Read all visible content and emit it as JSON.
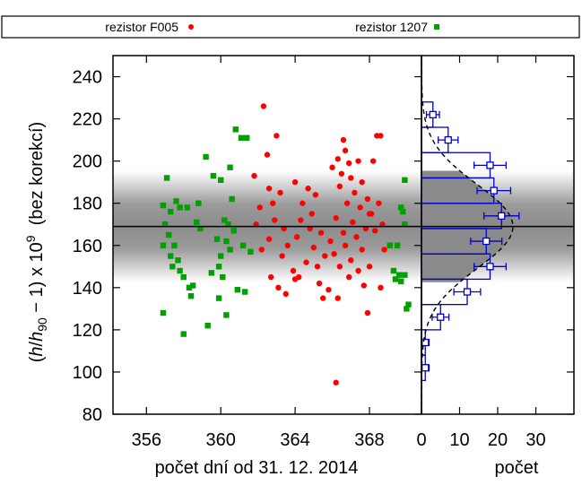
{
  "chart_data": [
    {
      "type": "scatter",
      "xlabel": "počet dní od 31. 12. 2014",
      "ylabel_parts": [
        "(",
        "h",
        "/",
        "h",
        "90",
        " − 1) x 10",
        "9",
        "  (bez korekcí)"
      ],
      "xlim": [
        354.2,
        370.8
      ],
      "ylim": [
        80,
        250
      ],
      "xticks": [
        356,
        360,
        364,
        368
      ],
      "yticks": [
        80,
        100,
        120,
        140,
        160,
        180,
        200,
        220,
        240
      ],
      "mean_line": 169,
      "band": {
        "center": 169,
        "sigma": 12
      },
      "legend_position": "top",
      "series": [
        {
          "name": "rezistor F005",
          "color": "#ff0000",
          "marker": "circle",
          "points": [
            [
              362.3,
              226
            ],
            [
              363.0,
              212
            ],
            [
              362.5,
              203
            ],
            [
              361.8,
              193
            ],
            [
              362.6,
              187
            ],
            [
              363.2,
              185
            ],
            [
              362.8,
              180
            ],
            [
              362.1,
              178
            ],
            [
              362.9,
              172
            ],
            [
              361.9,
              170
            ],
            [
              363.4,
              168
            ],
            [
              362.6,
              163
            ],
            [
              363.6,
              160
            ],
            [
              362.2,
              158
            ],
            [
              363.3,
              155
            ],
            [
              364.0,
              190
            ],
            [
              364.7,
              187
            ],
            [
              365.1,
              184
            ],
            [
              364.4,
              180
            ],
            [
              364.9,
              175
            ],
            [
              364.3,
              172
            ],
            [
              364.8,
              168
            ],
            [
              365.4,
              166
            ],
            [
              364.1,
              164
            ],
            [
              365.0,
              159
            ],
            [
              365.6,
              155
            ],
            [
              364.6,
              152
            ],
            [
              365.2,
              150
            ],
            [
              363.9,
              148
            ],
            [
              364.2,
              145
            ],
            [
              362.7,
              145
            ],
            [
              363.1,
              140
            ],
            [
              363.5,
              137
            ],
            [
              364.0,
              144
            ],
            [
              365.3,
              142
            ],
            [
              366.6,
              210
            ],
            [
              366.7,
              205
            ],
            [
              366.3,
              201
            ],
            [
              366.0,
              197
            ],
            [
              366.9,
              199
            ],
            [
              367.4,
              200
            ],
            [
              366.5,
              194
            ],
            [
              367.0,
              192
            ],
            [
              367.6,
              190
            ],
            [
              366.4,
              188
            ],
            [
              367.2,
              185
            ],
            [
              367.9,
              182
            ],
            [
              366.8,
              180
            ],
            [
              367.5,
              178
            ],
            [
              368.0,
              175
            ],
            [
              366.2,
              173
            ],
            [
              367.1,
              171
            ],
            [
              367.8,
              168
            ],
            [
              366.6,
              166
            ],
            [
              367.3,
              164
            ],
            [
              365.9,
              162
            ],
            [
              366.7,
              160
            ],
            [
              367.6,
              158
            ],
            [
              366.1,
              156
            ],
            [
              367.0,
              153
            ],
            [
              366.4,
              150
            ],
            [
              367.4,
              148
            ],
            [
              366.9,
              145
            ],
            [
              367.7,
              141
            ],
            [
              365.8,
              139
            ],
            [
              366.3,
              135
            ],
            [
              367.9,
              128
            ],
            [
              368.4,
              212
            ],
            [
              368.6,
              212
            ],
            [
              368.2,
              200
            ],
            [
              368.5,
              180
            ],
            [
              368.1,
              175
            ],
            [
              368.7,
              170
            ],
            [
              368.3,
              167
            ],
            [
              368.8,
              158
            ],
            [
              368.0,
              150
            ],
            [
              368.6,
              140
            ],
            [
              365.5,
              135
            ],
            [
              366.2,
              95
            ]
          ]
        },
        {
          "name": "rezistor 1207",
          "color": "#00a000",
          "marker": "square",
          "points": [
            [
              357.1,
              192
            ],
            [
              357.6,
              181
            ],
            [
              357.8,
              178
            ],
            [
              356.9,
              179
            ],
            [
              357.3,
              176
            ],
            [
              358.2,
              178
            ],
            [
              357.0,
              170
            ],
            [
              357.2,
              165
            ],
            [
              356.9,
              160
            ],
            [
              357.5,
              160
            ],
            [
              357.8,
              148
            ],
            [
              357.4,
              150
            ],
            [
              357.7,
              153
            ],
            [
              358.0,
              145
            ],
            [
              357.3,
              155
            ],
            [
              356.9,
              128
            ],
            [
              358.0,
              118
            ],
            [
              358.3,
              140
            ],
            [
              358.5,
              141
            ],
            [
              358.4,
              136
            ],
            [
              359.2,
              202
            ],
            [
              359.6,
              193
            ],
            [
              360.0,
              191
            ],
            [
              360.5,
              197
            ],
            [
              360.8,
              215
            ],
            [
              361.1,
              211
            ],
            [
              361.4,
              211
            ],
            [
              360.6,
              182
            ],
            [
              360.2,
              172
            ],
            [
              360.4,
              170
            ],
            [
              360.7,
              167
            ],
            [
              359.8,
              163
            ],
            [
              360.3,
              162
            ],
            [
              360.0,
              155
            ],
            [
              360.5,
              158
            ],
            [
              359.9,
              150
            ],
            [
              359.5,
              147
            ],
            [
              360.1,
              145
            ],
            [
              361.2,
              160
            ],
            [
              361.6,
              157
            ],
            [
              360.9,
              139
            ],
            [
              361.3,
              138
            ],
            [
              359.9,
              135
            ],
            [
              360.3,
              127
            ],
            [
              359.3,
              122
            ],
            [
              358.8,
              180
            ],
            [
              358.7,
              171
            ],
            [
              358.9,
              168
            ],
            [
              369.9,
              191
            ],
            [
              369.7,
              178
            ],
            [
              369.8,
              176
            ],
            [
              369.9,
              170
            ],
            [
              369.1,
              160
            ],
            [
              369.5,
              160
            ],
            [
              369.3,
              148
            ],
            [
              369.6,
              146
            ],
            [
              369.4,
              144
            ],
            [
              369.9,
              146
            ],
            [
              369.7,
              143
            ],
            [
              370.0,
              130
            ],
            [
              370.1,
              132
            ]
          ]
        }
      ]
    },
    {
      "type": "bar",
      "orientation": "horizontal",
      "xlabel": "počet",
      "xlim": [
        0,
        40
      ],
      "xticks": [
        0,
        10,
        20,
        30
      ],
      "ylim": [
        80,
        250
      ],
      "bin_edges": [
        96,
        108,
        120,
        132,
        144,
        156,
        168,
        180,
        192,
        204,
        216,
        228
      ],
      "counts": [
        1,
        1,
        5,
        12,
        18,
        17,
        21,
        19,
        18,
        7,
        3
      ],
      "errors": [
        1,
        1,
        2.2,
        3.5,
        4.2,
        4.1,
        4.6,
        4.4,
        4.2,
        2.6,
        1.7
      ],
      "gauss_fit": {
        "mean": 169,
        "sigma": 20,
        "peak": 24
      },
      "color": "#0000cc"
    }
  ]
}
